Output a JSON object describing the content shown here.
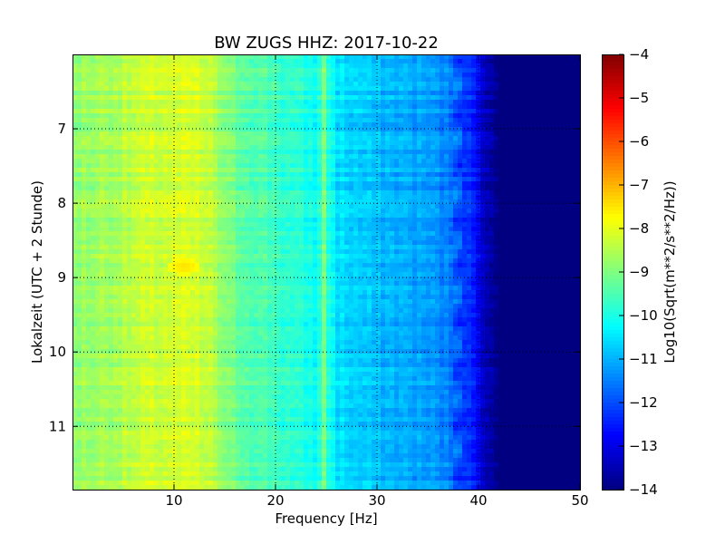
{
  "chart_data": {
    "type": "heatmap",
    "title": "BW ZUGS HHZ: 2017-10-22",
    "xlabel": "Frequency [Hz]",
    "ylabel": "Lokalzeit (UTC + 2 Stunde)",
    "xlim": [
      0,
      50
    ],
    "ylim": [
      11.85,
      6.0
    ],
    "xticks": [
      10,
      20,
      30,
      40,
      50
    ],
    "yticks": [
      7,
      8,
      9,
      10,
      11
    ],
    "grid": true,
    "colormap": "jet",
    "colorbar": {
      "label": "Log10(Sqrt(m**2/s**2/Hz))",
      "range": [
        -14,
        -4
      ],
      "ticks": [
        -4,
        -5,
        -6,
        -7,
        -8,
        -9,
        -10,
        -11,
        -12,
        -13,
        -14
      ]
    },
    "spectral_profile": {
      "frequency_hz": [
        0,
        2,
        5,
        7,
        10,
        12,
        14,
        15,
        17,
        20,
        22,
        24,
        25,
        26,
        28,
        30,
        32,
        35,
        37,
        38,
        39,
        40,
        41,
        42,
        45,
        50
      ],
      "log10_amplitude": [
        -8.8,
        -8.7,
        -8.5,
        -8.3,
        -8.2,
        -8.2,
        -8.5,
        -9.0,
        -9.3,
        -9.6,
        -9.9,
        -10.1,
        -9.7,
        -10.5,
        -10.7,
        -10.9,
        -11.0,
        -11.2,
        -11.5,
        -11.8,
        -12.3,
        -12.8,
        -13.6,
        -14.0,
        -14.0,
        -14.0
      ]
    },
    "features": {
      "narrow_line_hz": 24.7,
      "line_cluster_hz": [
        37.5,
        38.5
      ],
      "bright_spot": {
        "frequency_hz": 11,
        "time": 8.85,
        "log10_amplitude": -7.5
      }
    }
  }
}
